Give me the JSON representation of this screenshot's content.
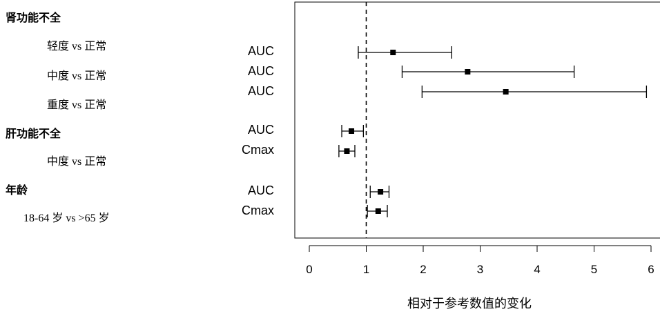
{
  "chart_data": {
    "type": "forest",
    "xlabel": "相对于参考数值的变化",
    "xlim": [
      -0.25,
      6.25
    ],
    "xticks": [
      0,
      1,
      2,
      3,
      4,
      5,
      6
    ],
    "reference_line": 1,
    "groups": [
      {
        "label": "肾功能不全",
        "subgroups": [
          {
            "label": "轻度 vs 正常",
            "rows": [
              {
                "metric": "AUC",
                "estimate": 1.47,
                "lower": 0.86,
                "upper": 2.5
              }
            ]
          },
          {
            "label": "中度 vs 正常",
            "rows": [
              {
                "metric": "AUC",
                "estimate": 2.78,
                "lower": 1.63,
                "upper": 4.65
              }
            ]
          },
          {
            "label": "重度 vs 正常",
            "rows": [
              {
                "metric": "AUC",
                "estimate": 3.45,
                "lower": 1.98,
                "upper": 5.92
              }
            ]
          }
        ]
      },
      {
        "label": "肝功能不全",
        "subgroups": [
          {
            "label": "中度 vs 正常",
            "rows": [
              {
                "metric": "AUC",
                "estimate": 0.74,
                "lower": 0.57,
                "upper": 0.95
              },
              {
                "metric": "Cmax",
                "estimate": 0.66,
                "lower": 0.52,
                "upper": 0.8
              }
            ]
          }
        ]
      },
      {
        "label": "年龄",
        "subgroups": [
          {
            "label": "18-64 岁 vs >65 岁",
            "rows": [
              {
                "metric": "AUC",
                "estimate": 1.25,
                "lower": 1.07,
                "upper": 1.4
              },
              {
                "metric": "Cmax",
                "estimate": 1.21,
                "lower": 1.02,
                "upper": 1.37
              }
            ]
          }
        ]
      }
    ]
  }
}
